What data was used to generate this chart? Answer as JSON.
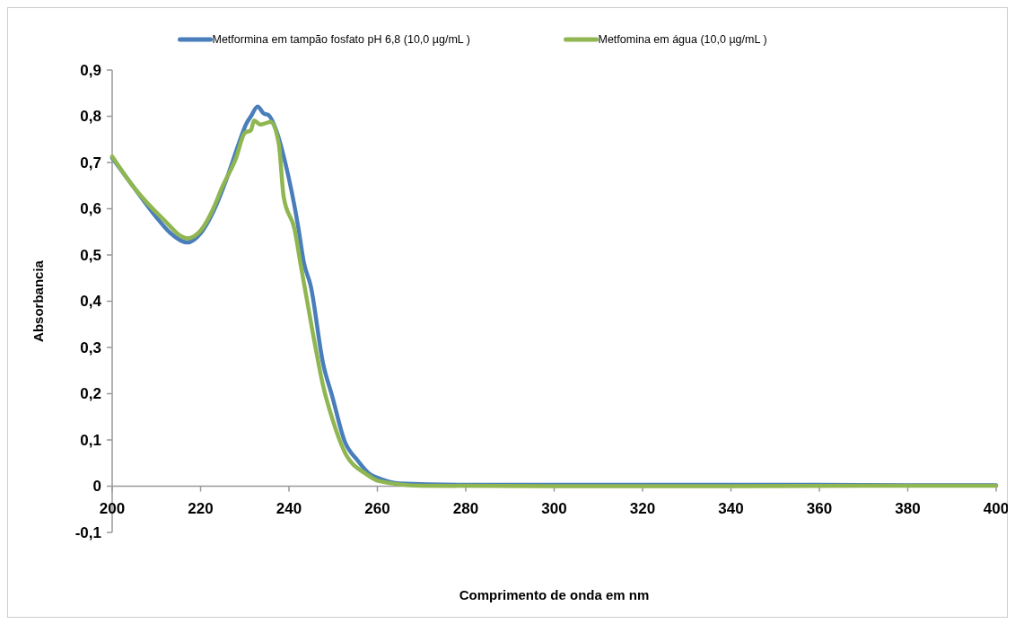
{
  "chart_data": {
    "type": "line",
    "xlabel": "Comprimento de onda em nm",
    "ylabel": "Absorbancia",
    "xlim": [
      200,
      400
    ],
    "xticks": [
      200,
      220,
      240,
      260,
      280,
      300,
      320,
      340,
      360,
      380,
      400
    ],
    "ylim": [
      -0.1,
      0.9
    ],
    "yticks": [
      {
        "value": -0.1,
        "label": "-0,1"
      },
      0,
      {
        "value": 0.1,
        "label": "0,1"
      },
      {
        "value": 0.2,
        "label": "0,2"
      },
      {
        "value": 0.3,
        "label": "0,3"
      },
      {
        "value": 0.4,
        "label": "0,4"
      },
      {
        "value": 0.5,
        "label": "0,5"
      },
      {
        "value": 0.6,
        "label": "0,6"
      },
      {
        "value": 0.7,
        "label": "0,7"
      },
      {
        "value": 0.8,
        "label": "0,8"
      },
      {
        "value": 0.9,
        "label": "0,9"
      }
    ],
    "grid": false,
    "legend": "top",
    "marker": "none",
    "line_style": "solid",
    "series": [
      {
        "name": "Metformina em tampão fosfato pH 6,8 (10,0 µg/mL )",
        "color": "#4a7ebb",
        "x": [
          200,
          204.6,
          210.3,
          213.1,
          217,
          220.1,
          223,
          225.8,
          228.6,
          230.4,
          231.4,
          232.9,
          234.3,
          235.3,
          237.1,
          239.2,
          242,
          243.4,
          244.9,
          247.7,
          249.8,
          252.6,
          255.5,
          258.3,
          260.4,
          265,
          280,
          300,
          320,
          340,
          360,
          380,
          400
        ],
        "values": [
          0.71,
          0.65,
          0.578,
          0.548,
          0.527,
          0.548,
          0.596,
          0.662,
          0.74,
          0.785,
          0.8,
          0.821,
          0.806,
          0.803,
          0.77,
          0.698,
          0.566,
          0.482,
          0.434,
          0.266,
          0.194,
          0.097,
          0.056,
          0.026,
          0.017,
          0.006,
          0.003,
          0.003,
          0.003,
          0.003,
          0.003,
          0.002,
          0.002
        ]
      },
      {
        "name": "Metfomina em água (10,0 µg/mL )",
        "color": "#8fb650",
        "x": [
          200,
          204.6,
          211.3,
          217,
          220.1,
          223,
          224.8,
          228,
          230,
          231.4,
          232.1,
          233.5,
          235.9,
          237.7,
          238.8,
          241.3,
          242.7,
          245.5,
          247.7,
          249.8,
          252.6,
          257.5,
          260.4,
          270,
          300,
          340,
          370,
          400
        ],
        "values": [
          0.713,
          0.65,
          0.58,
          0.536,
          0.554,
          0.603,
          0.645,
          0.709,
          0.764,
          0.77,
          0.791,
          0.782,
          0.788,
          0.74,
          0.626,
          0.554,
          0.476,
          0.326,
          0.218,
          0.146,
          0.074,
          0.026,
          0.011,
          0.001,
          0,
          0,
          0.001,
          0.001
        ]
      }
    ]
  }
}
